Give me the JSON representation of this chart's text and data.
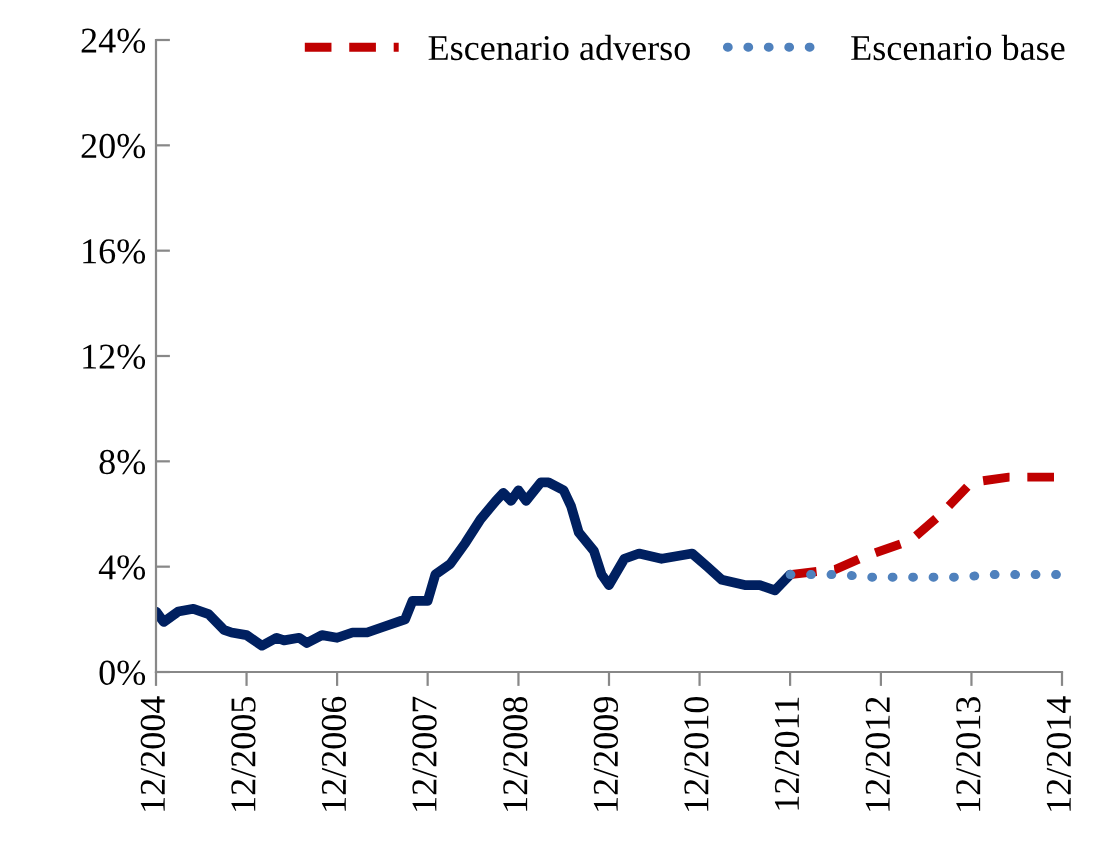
{
  "chart_data": {
    "type": "line",
    "xlim": [
      "2004-12",
      "2014-12"
    ],
    "xticks": [
      {
        "value": "2004-12",
        "label": "12/2004"
      },
      {
        "value": "2005-12",
        "label": "12/2005"
      },
      {
        "value": "2006-12",
        "label": "12/2006"
      },
      {
        "value": "2007-12",
        "label": "12/2007"
      },
      {
        "value": "2008-12",
        "label": "12/2008"
      },
      {
        "value": "2009-12",
        "label": "12/2009"
      },
      {
        "value": "2010-12",
        "label": "12/2010"
      },
      {
        "value": "2011-12",
        "label": "12/2011"
      },
      {
        "value": "2012-12",
        "label": "12/2012"
      },
      {
        "value": "2013-12",
        "label": "12/2013"
      },
      {
        "value": "2014-12",
        "label": "12/2014"
      }
    ],
    "ylim": [
      0,
      24
    ],
    "yticks": [
      {
        "value": 0,
        "label": "0%"
      },
      {
        "value": 4,
        "label": "4%"
      },
      {
        "value": 8,
        "label": "8%"
      },
      {
        "value": 12,
        "label": "12%"
      },
      {
        "value": 16,
        "label": "16%"
      },
      {
        "value": 20,
        "label": "20%"
      },
      {
        "value": 24,
        "label": "24%"
      }
    ],
    "grid": false,
    "legend": "top right",
    "series": [
      {
        "color": "#002060",
        "line_style": "solid",
        "x": [
          "2004-12",
          "2005-01",
          "2005-03",
          "2005-05",
          "2005-07",
          "2005-09",
          "2005-10",
          "2005-12",
          "2006-02",
          "2006-04",
          "2006-05",
          "2006-07",
          "2006-08",
          "2006-10",
          "2006-12",
          "2007-02",
          "2007-04",
          "2007-06",
          "2007-09",
          "2007-10",
          "2007-12",
          "2008-01",
          "2008-03",
          "2008-05",
          "2008-07",
          "2008-09",
          "2008-10",
          "2008-11",
          "2008-12",
          "2009-01",
          "2009-03",
          "2009-04",
          "2009-06",
          "2009-07",
          "2009-08",
          "2009-10",
          "2009-11",
          "2009-12",
          "2010-02",
          "2010-04",
          "2010-07",
          "2010-11",
          "2011-01",
          "2011-03",
          "2011-06",
          "2011-08",
          "2011-10",
          "2011-11",
          "2011-12"
        ],
        "values": [
          2.3,
          1.9,
          2.3,
          2.4,
          2.2,
          1.6,
          1.5,
          1.4,
          1.0,
          1.3,
          1.2,
          1.3,
          1.1,
          1.4,
          1.3,
          1.5,
          1.5,
          1.7,
          2.0,
          2.7,
          2.7,
          3.7,
          4.1,
          4.9,
          5.8,
          6.5,
          6.8,
          6.5,
          6.9,
          6.5,
          7.2,
          7.2,
          6.9,
          6.3,
          5.3,
          4.6,
          3.7,
          3.3,
          4.3,
          4.5,
          4.3,
          4.5,
          4.0,
          3.5,
          3.3,
          3.3,
          3.1,
          3.4,
          3.7
        ]
      },
      {
        "name": "Escenario adverso",
        "color": "#c00000",
        "line_style": "dashed",
        "x": [
          "2011-12",
          "2012-06",
          "2012-10",
          "2013-04",
          "2013-08",
          "2013-12",
          "2014-05",
          "2014-12"
        ],
        "values": [
          3.7,
          3.9,
          4.4,
          5.0,
          6.0,
          7.2,
          7.4,
          7.4
        ]
      },
      {
        "name": "Escenario base",
        "color": "#4f81bd",
        "line_style": "dotted",
        "x": [
          "2011-12",
          "2012-07",
          "2012-10",
          "2013-11",
          "2014-02",
          "2014-12"
        ],
        "values": [
          3.7,
          3.7,
          3.6,
          3.6,
          3.7,
          3.7
        ]
      }
    ]
  }
}
